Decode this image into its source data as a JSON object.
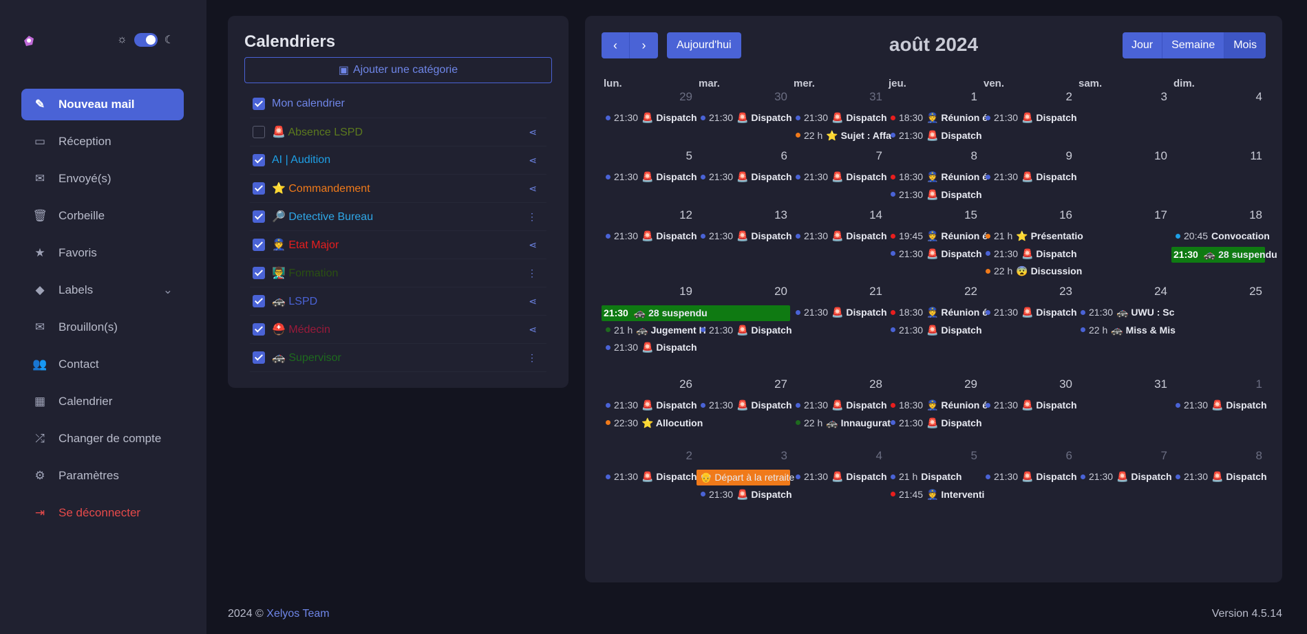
{
  "colors": {
    "accent": "#4a63d6",
    "sidebar": "#202130",
    "background": "#13141f",
    "danger": "#e64a4a"
  },
  "nav": [
    {
      "label": "Nouveau mail",
      "icon": "compose-icon",
      "active": true
    },
    {
      "label": "Réception",
      "icon": "inbox-icon"
    },
    {
      "label": "Envoyé(s)",
      "icon": "envelope-icon"
    },
    {
      "label": "Corbeille",
      "icon": "trash-icon"
    },
    {
      "label": "Favoris",
      "icon": "star-icon"
    },
    {
      "label": "Labels",
      "icon": "tags-icon",
      "chevron": true
    },
    {
      "label": "Brouillon(s)",
      "icon": "envelope-icon"
    },
    {
      "label": "Contact",
      "icon": "users-icon"
    },
    {
      "label": "Calendrier",
      "icon": "calendar-icon"
    },
    {
      "label": "Changer de compte",
      "icon": "shuffle-icon"
    },
    {
      "label": "Paramètres",
      "icon": "gear-icon"
    },
    {
      "label": "Se déconnecter",
      "icon": "logout-icon",
      "danger": true
    }
  ],
  "calendars": {
    "title": "Calendriers",
    "add_label": "Ajouter une catégorie",
    "items": [
      {
        "label": "Mon calendrier",
        "checked": true,
        "color": "#6f86e8",
        "action": ""
      },
      {
        "label": "🚨 Absence LSPD",
        "checked": false,
        "color": "#5c7a1e",
        "action": "share"
      },
      {
        "label": "AI | Audition",
        "checked": true,
        "color": "#1ea0e6",
        "action": "share"
      },
      {
        "label": "⭐ Commandement",
        "checked": true,
        "color": "#f07a1a",
        "action": "share"
      },
      {
        "label": "🔎 Detective Bureau",
        "checked": true,
        "color": "#2fa8e8",
        "action": "more"
      },
      {
        "label": "👮 Etat Major",
        "checked": true,
        "color": "#e81e1e",
        "action": "share"
      },
      {
        "label": "👨‍🏫 Formation",
        "checked": true,
        "color": "#2a4f12",
        "action": "more"
      },
      {
        "label": "🚓 LSPD",
        "checked": true,
        "color": "#4a63d6",
        "action": "share"
      },
      {
        "label": "⛑️ Médecin",
        "checked": true,
        "color": "#9a1a3a",
        "action": "share"
      },
      {
        "label": "🚓 Supervisor",
        "checked": true,
        "color": "#1e6a1e",
        "action": "more"
      }
    ]
  },
  "toolbar": {
    "today_label": "Aujourd'hui",
    "views": [
      "Jour",
      "Semaine",
      "Mois"
    ]
  },
  "calendar_title": "août 2024",
  "weekdays": [
    "lun.",
    "mar.",
    "mer.",
    "jeu.",
    "ven.",
    "sam.",
    "dim."
  ],
  "weeks": [
    {
      "height": 86,
      "days": [
        {
          "n": "29",
          "other": true,
          "events": [
            {
              "c": "#4a63d6",
              "t": "21:30",
              "l": "🚨 Dispatch"
            }
          ]
        },
        {
          "n": "30",
          "other": true,
          "events": [
            {
              "c": "#4a63d6",
              "t": "21:30",
              "l": "🚨 Dispatch"
            }
          ]
        },
        {
          "n": "31",
          "other": true,
          "events": [
            {
              "c": "#4a63d6",
              "t": "21:30",
              "l": "🚨 Dispatch"
            },
            {
              "c": "#f07a1a",
              "t": "22 h",
              "l": "⭐ Sujet : Affa"
            }
          ]
        },
        {
          "n": "1",
          "events": [
            {
              "c": "#e81e1e",
              "t": "18:30",
              "l": "👮 Réunion é"
            },
            {
              "c": "#4a63d6",
              "t": "21:30",
              "l": "🚨 Dispatch"
            }
          ]
        },
        {
          "n": "2",
          "events": [
            {
              "c": "#4a63d6",
              "t": "21:30",
              "l": "🚨 Dispatch"
            }
          ]
        },
        {
          "n": "3",
          "events": []
        },
        {
          "n": "4",
          "events": []
        }
      ]
    },
    {
      "height": 86,
      "days": [
        {
          "n": "5",
          "events": [
            {
              "c": "#4a63d6",
              "t": "21:30",
              "l": "🚨 Dispatch"
            }
          ]
        },
        {
          "n": "6",
          "events": [
            {
              "c": "#4a63d6",
              "t": "21:30",
              "l": "🚨 Dispatch"
            }
          ]
        },
        {
          "n": "7",
          "events": [
            {
              "c": "#4a63d6",
              "t": "21:30",
              "l": "🚨 Dispatch"
            }
          ]
        },
        {
          "n": "8",
          "events": [
            {
              "c": "#e81e1e",
              "t": "18:30",
              "l": "👮 Réunion é"
            },
            {
              "c": "#4a63d6",
              "t": "21:30",
              "l": "🚨 Dispatch"
            }
          ]
        },
        {
          "n": "9",
          "events": [
            {
              "c": "#4a63d6",
              "t": "21:30",
              "l": "🚨 Dispatch"
            }
          ]
        },
        {
          "n": "10",
          "events": []
        },
        {
          "n": "11",
          "events": []
        }
      ]
    },
    {
      "height": 111,
      "days": [
        {
          "n": "12",
          "events": [
            {
              "c": "#4a63d6",
              "t": "21:30",
              "l": "🚨 Dispatch"
            }
          ]
        },
        {
          "n": "13",
          "events": [
            {
              "c": "#4a63d6",
              "t": "21:30",
              "l": "🚨 Dispatch"
            }
          ]
        },
        {
          "n": "14",
          "events": [
            {
              "c": "#4a63d6",
              "t": "21:30",
              "l": "🚨 Dispatch"
            }
          ]
        },
        {
          "n": "15",
          "events": [
            {
              "c": "#e81e1e",
              "t": "19:45",
              "l": "👮 Réunion é"
            },
            {
              "c": "#4a63d6",
              "t": "21:30",
              "l": "🚨 Dispatch"
            }
          ]
        },
        {
          "n": "16",
          "events": [
            {
              "c": "#f07a1a",
              "t": "21 h",
              "l": "⭐ Présentatio"
            },
            {
              "c": "#4a63d6",
              "t": "21:30",
              "l": "🚨 Dispatch"
            },
            {
              "c": "#f07a1a",
              "t": "22 h",
              "l": "😨 Discussion"
            }
          ]
        },
        {
          "n": "17",
          "events": []
        },
        {
          "n": "18",
          "events": [
            {
              "c": "#1ea0e6",
              "t": "20:45",
              "l": "Convocation"
            }
          ]
        }
      ]
    },
    {
      "height": 135,
      "days": [
        {
          "n": "19",
          "events": [
            {
              "slot": 1,
              "c": "#1e6a1e",
              "t": "21 h",
              "l": "🚓 Jugement H"
            },
            {
              "slot": 2,
              "c": "#4a63d6",
              "t": "21:30",
              "l": "🚨 Dispatch"
            }
          ]
        },
        {
          "n": "20",
          "events": [
            {
              "slot": 1,
              "c": "#4a63d6",
              "t": "21:30",
              "l": "🚨 Dispatch"
            }
          ]
        },
        {
          "n": "21",
          "events": [
            {
              "c": "#4a63d6",
              "t": "21:30",
              "l": "🚨 Dispatch"
            }
          ]
        },
        {
          "n": "22",
          "events": [
            {
              "c": "#e81e1e",
              "t": "18:30",
              "l": "👮 Réunion é"
            },
            {
              "c": "#4a63d6",
              "t": "21:30",
              "l": "🚨 Dispatch"
            }
          ]
        },
        {
          "n": "23",
          "events": [
            {
              "c": "#4a63d6",
              "t": "21:30",
              "l": "🚨 Dispatch"
            }
          ]
        },
        {
          "n": "24",
          "events": [
            {
              "c": "#4a63d6",
              "t": "21:30",
              "l": "🚓 UWU : Sc"
            },
            {
              "c": "#4a63d6",
              "t": "22 h",
              "l": "🚓 Miss & Mis"
            }
          ]
        },
        {
          "n": "25",
          "events": []
        }
      ]
    },
    {
      "height": 104,
      "days": [
        {
          "n": "26",
          "events": [
            {
              "c": "#4a63d6",
              "t": "21:30",
              "l": "🚨 Dispatch"
            },
            {
              "c": "#f07a1a",
              "t": "22:30",
              "l": "⭐ Allocution"
            }
          ]
        },
        {
          "n": "27",
          "events": [
            {
              "c": "#4a63d6",
              "t": "21:30",
              "l": "🚨 Dispatch"
            }
          ]
        },
        {
          "n": "28",
          "events": [
            {
              "c": "#4a63d6",
              "t": "21:30",
              "l": "🚨 Dispatch"
            },
            {
              "c": "#1e6a1e",
              "t": "22 h",
              "l": "🚓 Innaugurat"
            }
          ]
        },
        {
          "n": "29",
          "events": [
            {
              "c": "#e81e1e",
              "t": "18:30",
              "l": "👮 Réunion é"
            },
            {
              "c": "#4a63d6",
              "t": "21:30",
              "l": "🚨 Dispatch"
            }
          ]
        },
        {
          "n": "30",
          "events": [
            {
              "c": "#4a63d6",
              "t": "21:30",
              "l": "🚨 Dispatch"
            }
          ]
        },
        {
          "n": "31",
          "events": []
        },
        {
          "n": "1",
          "other": true,
          "events": [
            {
              "c": "#4a63d6",
              "t": "21:30",
              "l": "🚨 Dispatch"
            }
          ]
        }
      ]
    },
    {
      "height": 104,
      "days": [
        {
          "n": "2",
          "other": true,
          "events": [
            {
              "c": "#4a63d6",
              "t": "21:30",
              "l": "🚨 Dispatch"
            }
          ]
        },
        {
          "n": "3",
          "other": true,
          "events": [
            {
              "slot": 1,
              "c": "#4a63d6",
              "t": "21:30",
              "l": "🚨 Dispatch"
            }
          ]
        },
        {
          "n": "4",
          "other": true,
          "events": [
            {
              "c": "#4a63d6",
              "t": "21:30",
              "l": "🚨 Dispatch"
            }
          ]
        },
        {
          "n": "5",
          "other": true,
          "events": [
            {
              "c": "#4a63d6",
              "t": "21 h",
              "l": "Dispatch"
            },
            {
              "c": "#e81e1e",
              "t": "21:45",
              "l": "👮 Interventi"
            }
          ]
        },
        {
          "n": "6",
          "other": true,
          "events": [
            {
              "c": "#4a63d6",
              "t": "21:30",
              "l": "🚨 Dispatch"
            }
          ]
        },
        {
          "n": "7",
          "other": true,
          "events": [
            {
              "c": "#4a63d6",
              "t": "21:30",
              "l": "🚨 Dispatch"
            }
          ]
        },
        {
          "n": "8",
          "other": true,
          "events": [
            {
              "c": "#4a63d6",
              "t": "21:30",
              "l": "🚨 Dispatch"
            }
          ]
        }
      ]
    }
  ],
  "multi_events": [
    {
      "week": 2,
      "start_col": 6,
      "span": 1,
      "slot": 1,
      "bg": "#0f7a12",
      "t": "21:30",
      "l": "🚓 28 suspendu"
    },
    {
      "week": 3,
      "start_col": 0,
      "span": 2,
      "slot": 0,
      "bg": "#0f7a12",
      "t": "21:30",
      "l": "🚓 28 suspendu"
    },
    {
      "week": 5,
      "start_col": 1,
      "span": 1,
      "slot": 0,
      "bg": "#f07a1a",
      "t": "",
      "l": "👴 Départ à la retraite"
    }
  ],
  "footer": {
    "prefix": "2024 © ",
    "team": "Xelyos Team",
    "version": "Version 4.5.14"
  }
}
